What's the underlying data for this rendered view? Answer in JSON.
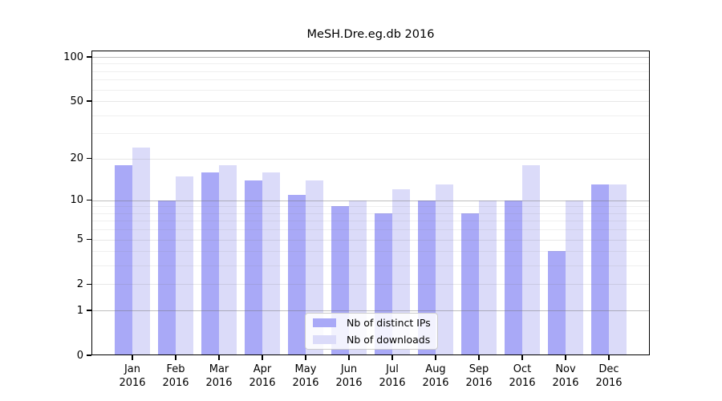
{
  "chart_data": {
    "type": "bar",
    "title": "MeSH.Dre.eg.db 2016",
    "categories": [
      "Jan",
      "Feb",
      "Mar",
      "Apr",
      "May",
      "Jun",
      "Jul",
      "Aug",
      "Sep",
      "Oct",
      "Nov",
      "Dec"
    ],
    "year": "2016",
    "series": [
      {
        "name": "Nb of distinct IPs",
        "color": "#a9a9f7",
        "values": [
          18,
          10,
          16,
          14,
          11,
          9,
          8,
          10,
          8,
          10,
          4,
          13
        ]
      },
      {
        "name": "Nb of downloads",
        "color": "#dbdbf9",
        "values": [
          24,
          15,
          18,
          16,
          14,
          10,
          12,
          13,
          10,
          18,
          10,
          13
        ]
      }
    ],
    "xlabel": "",
    "ylabel": "",
    "yscale": "log1p",
    "yticks": [
      100,
      50,
      20,
      10,
      5,
      2,
      1,
      0
    ],
    "ylim": [
      0,
      110
    ],
    "grid": true,
    "legend_position": "lower center",
    "colors": {
      "frame": "#000000",
      "grid_decade": "#9a9a9a",
      "grid_minor": "#ebebeb"
    }
  }
}
